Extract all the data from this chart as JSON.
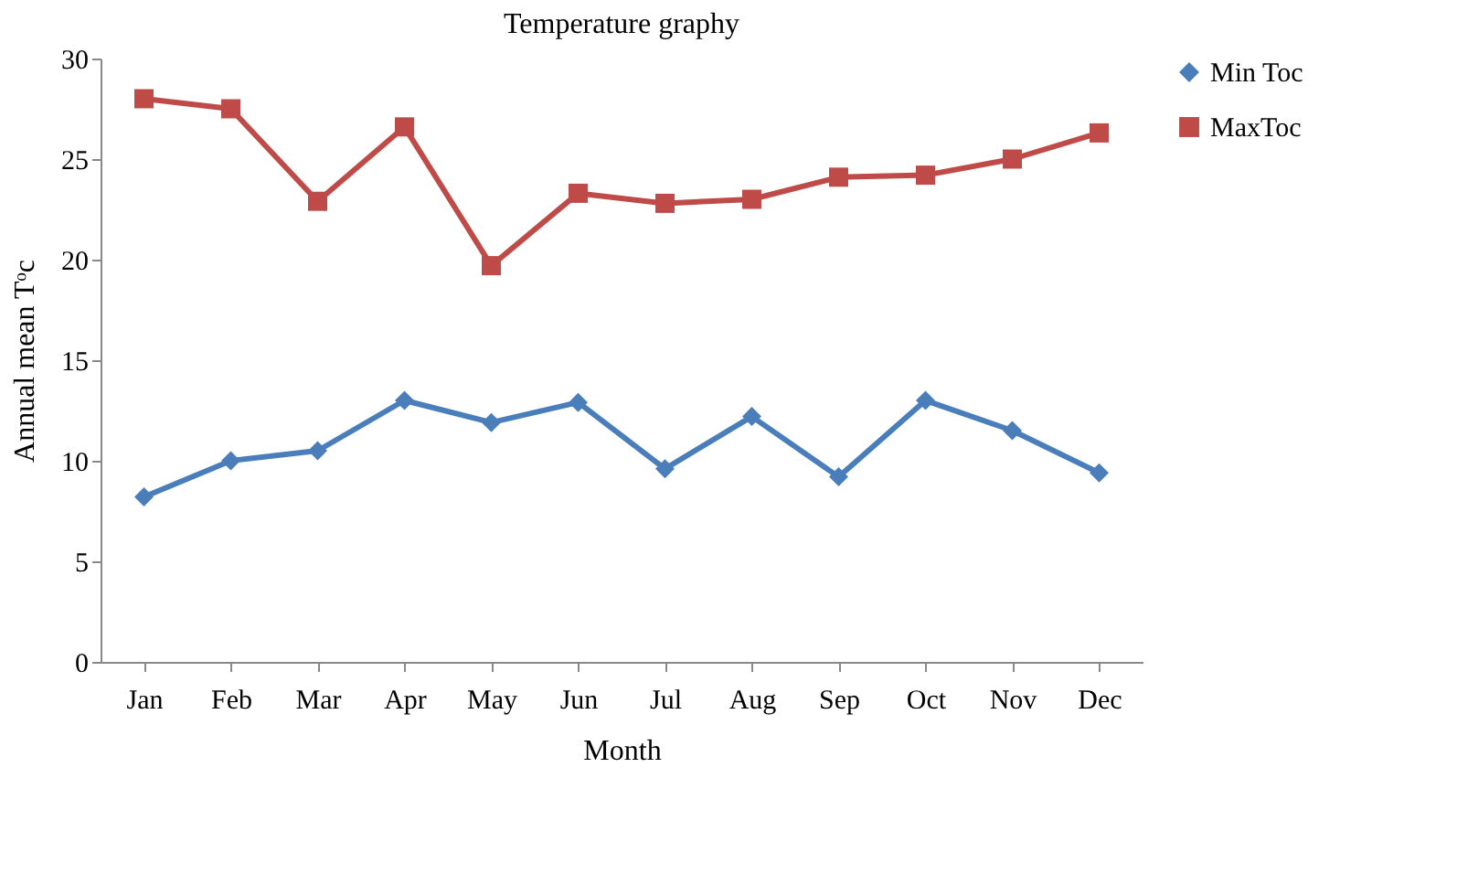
{
  "chart_data": {
    "type": "line",
    "title": "Temperature graphy",
    "xlabel": "Month",
    "ylabel": "Annual mean Tᵒc",
    "categories": [
      "Jan",
      "Feb",
      "Mar",
      "Apr",
      "May",
      "Jun",
      "Jul",
      "Aug",
      "Sep",
      "Oct",
      "Nov",
      "Dec"
    ],
    "series": [
      {
        "name": "Min Toc",
        "color": "#4a7ebb",
        "marker": "diamond",
        "values": [
          8.2,
          10.0,
          10.5,
          13.0,
          11.9,
          12.9,
          9.6,
          12.2,
          9.2,
          13.0,
          11.5,
          9.4
        ]
      },
      {
        "name": "MaxToc",
        "color": "#be4b48",
        "marker": "square",
        "values": [
          28.0,
          27.5,
          22.9,
          26.6,
          19.7,
          23.3,
          22.8,
          23.0,
          24.1,
          24.2,
          25.0,
          26.3
        ]
      }
    ],
    "ylim": [
      0,
      30
    ],
    "yticks": [
      0,
      5,
      10,
      15,
      20,
      25,
      30
    ],
    "grid": false,
    "legend": "top right",
    "line_style": "solid"
  }
}
